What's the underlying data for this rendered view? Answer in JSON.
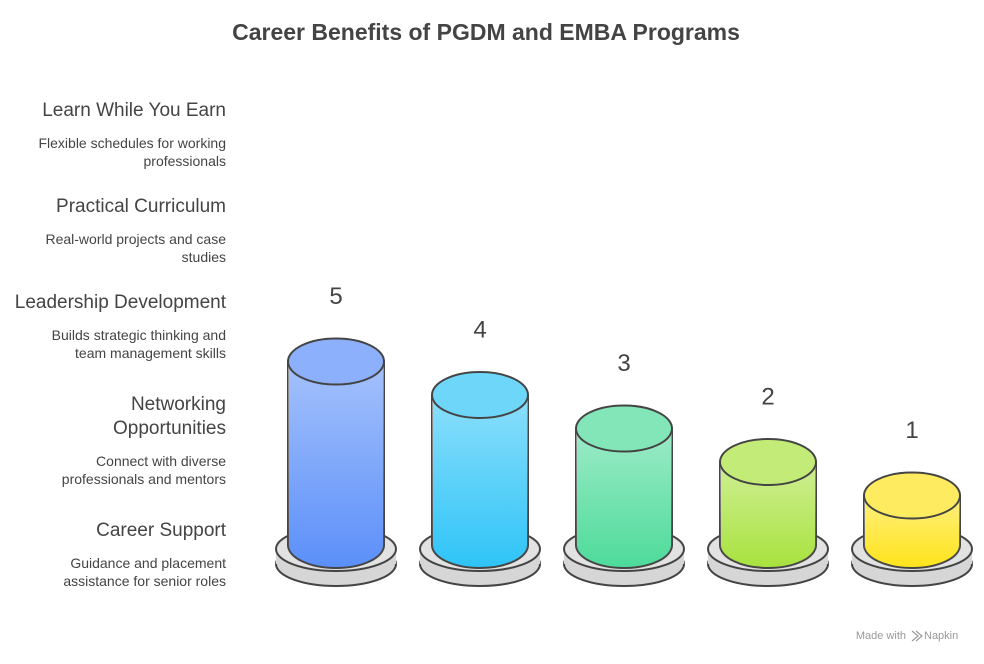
{
  "chart_data": {
    "type": "cylinder",
    "title": "Career Benefits of PGDM and EMBA Programs",
    "values": [
      5,
      4,
      3,
      2,
      1
    ],
    "colors": [
      "#5b8ff9",
      "#2ec4f7",
      "#4ddb9a",
      "#a8e23e",
      "#ffe31a"
    ],
    "items": [
      {
        "title": [
          "Learn While You Earn"
        ],
        "description": [
          "Flexible schedules for working",
          "professionals"
        ]
      },
      {
        "title": [
          "Practical Curriculum"
        ],
        "description": [
          "Real-world projects and case",
          "studies"
        ]
      },
      {
        "title": [
          "Leadership Development"
        ],
        "description": [
          "Builds strategic thinking and",
          "team management skills"
        ]
      },
      {
        "title": [
          "Networking",
          "Opportunities"
        ],
        "description": [
          "Connect with diverse",
          "professionals and mentors"
        ]
      },
      {
        "title": [
          "Career Support"
        ],
        "description": [
          "Guidance and placement",
          "assistance for senior roles"
        ]
      }
    ],
    "footer": [
      "Made with",
      "Napkin"
    ]
  }
}
